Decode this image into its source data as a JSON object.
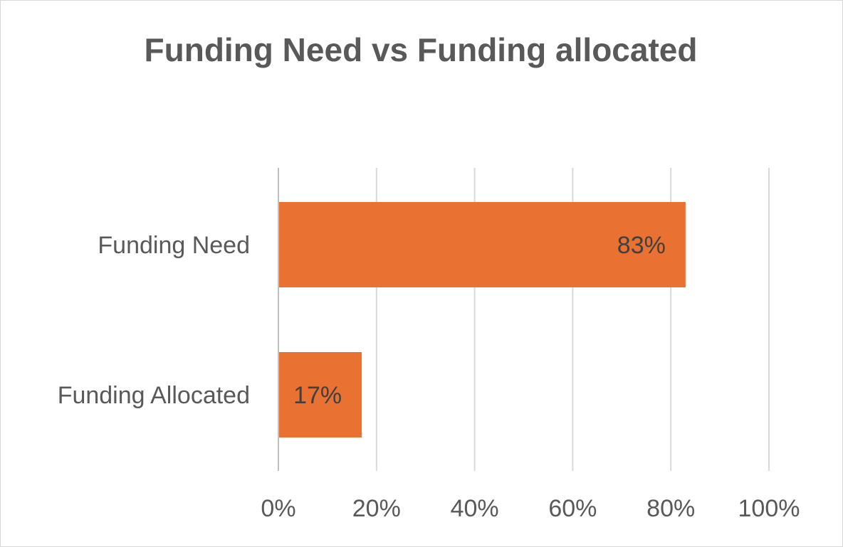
{
  "chart_data": {
    "type": "bar",
    "orientation": "horizontal",
    "title": "Funding Need vs Funding allocated",
    "xlabel": "",
    "ylabel": "",
    "categories": [
      "Funding Need",
      "Funding Allocated"
    ],
    "values": [
      83,
      17
    ],
    "data_labels": [
      "83%",
      "17%"
    ],
    "x_ticks": [
      0,
      20,
      40,
      60,
      80,
      100
    ],
    "x_tick_labels": [
      "0%",
      "20%",
      "40%",
      "60%",
      "80%",
      "100%"
    ],
    "xlim": [
      0,
      100
    ],
    "grid": true,
    "legend": "none",
    "bar_color": "#e97132"
  }
}
